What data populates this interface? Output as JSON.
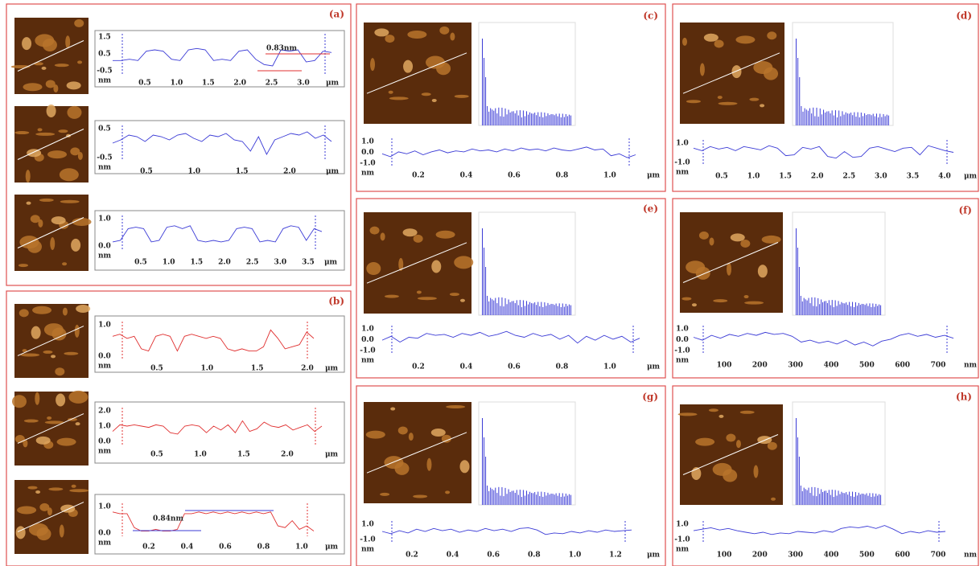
{
  "panels": [
    {
      "label": "(a)",
      "color": "#3b3bd6",
      "rows": [
        {
          "yticks": [
            "1.5",
            "0.5",
            "-0.5"
          ],
          "yunit": "nm",
          "xticks": [
            "0.5",
            "1.0",
            "1.5",
            "2.0",
            "2.5",
            "3.0"
          ],
          "xunit": "μm",
          "ylim": [
            -1,
            2
          ],
          "annotation": "0.83nm",
          "profile": [
            0,
            0,
            0.1,
            0,
            0.7,
            0.8,
            0.7,
            0.1,
            0,
            0.8,
            0.9,
            0.8,
            0,
            0.1,
            0,
            0.7,
            0.8,
            0.1,
            -0.3,
            -0.4,
            0.8,
            0.7,
            0.8,
            -0.1,
            0,
            0.7,
            0.6
          ]
        },
        {
          "yticks": [
            "0.5",
            "-0.5"
          ],
          "yunit": "nm",
          "xticks": [
            "0.5",
            "1.0",
            "1.5",
            "2.0"
          ],
          "xunit": "μm",
          "ylim": [
            -1,
            1.2
          ],
          "profile": [
            0.1,
            0.3,
            0.6,
            0.5,
            0.2,
            0.6,
            0.5,
            0.3,
            0.6,
            0.7,
            0.4,
            0.2,
            0.6,
            0.5,
            0.7,
            0.3,
            0.2,
            -0.4,
            0.5,
            -0.6,
            0.3,
            0.5,
            0.7,
            0.6,
            0.8,
            0.4,
            0.6,
            0.2
          ]
        },
        {
          "yticks": [
            "1.0",
            "0.0"
          ],
          "yunit": "nm",
          "xticks": [
            "0.5",
            "1.0",
            "1.5",
            "2.0",
            "2.5",
            "3.0",
            "3.5"
          ],
          "xunit": "μm",
          "ylim": [
            -0.5,
            1.8
          ],
          "profile": [
            0,
            0.1,
            0.9,
            1.0,
            0.9,
            0,
            0.1,
            1.0,
            1.1,
            0.9,
            1.1,
            0.1,
            0,
            0.1,
            0,
            0.1,
            0.9,
            1.0,
            0.9,
            0,
            0.1,
            0,
            0.9,
            1.1,
            1.0,
            0.1,
            0.9,
            0.7
          ]
        }
      ]
    },
    {
      "label": "(b)",
      "color": "#e03030",
      "rows": [
        {
          "yticks": [
            "1.0",
            "0.0"
          ],
          "yunit": "nm",
          "xticks": [
            "0.5",
            "1.0",
            "1.5",
            "2.0"
          ],
          "xunit": "μm",
          "ylim": [
            -0.3,
            1.5
          ],
          "profile": [
            0.8,
            0.9,
            0.7,
            0.8,
            0.2,
            0.1,
            0.8,
            0.9,
            0.8,
            0.1,
            0.8,
            0.9,
            0.8,
            0.7,
            0.8,
            0.7,
            0.2,
            0.1,
            0.2,
            0.1,
            0.1,
            0.3,
            1.1,
            0.7,
            0.2,
            0.3,
            0.4,
            1.0,
            0.7
          ]
        },
        {
          "yticks": [
            "2.0",
            "1.0",
            "0.0"
          ],
          "yunit": "nm",
          "xticks": [
            "0.5",
            "1.0",
            "1.5",
            "2.0"
          ],
          "xunit": "μm",
          "ylim": [
            -0.5,
            2.3
          ],
          "profile": [
            0.5,
            1.0,
            0.9,
            1.0,
            0.9,
            0.8,
            1.0,
            0.9,
            0.4,
            0.3,
            0.9,
            1.0,
            0.9,
            0.4,
            0.9,
            0.6,
            1.0,
            0.4,
            1.3,
            0.5,
            0.7,
            1.2,
            0.9,
            0.8,
            1.0,
            0.6,
            0.8,
            1.0,
            0.5,
            0.9
          ]
        },
        {
          "yticks": [
            "1.0",
            "0.0"
          ],
          "yunit": "nm",
          "xticks": [
            "0.2",
            "0.4",
            "0.6",
            "0.8",
            "1.0"
          ],
          "xunit": "μm",
          "ylim": [
            -0.3,
            1.6
          ],
          "annotation": "0.84nm",
          "profile": [
            1.1,
            1.0,
            1.0,
            0.2,
            0.0,
            0.0,
            0.1,
            0.0,
            0.0,
            0.1,
            1.0,
            1.0,
            1.1,
            1.0,
            1.1,
            1.0,
            1.1,
            1.0,
            1.1,
            1.0,
            1.1,
            1.0,
            1.1,
            0.3,
            0.2,
            0.6,
            0.1,
            0.3,
            0.0
          ]
        }
      ]
    },
    {
      "label": "(c)",
      "color": "#3b3bd6",
      "rows": [
        {
          "yticks": [
            "1.0",
            "0.0",
            "-1.0"
          ],
          "yunit": "nm",
          "xticks": [
            "0.2",
            "0.4",
            "0.6",
            "0.8",
            "1.0"
          ],
          "xunit": "μm",
          "ylim": [
            -1.3,
            1.6
          ],
          "profile": [
            0,
            -0.3,
            0.2,
            0,
            0.3,
            -0.1,
            0.2,
            0.4,
            0.1,
            0.3,
            0.2,
            0.5,
            0.3,
            0.4,
            0.2,
            0.5,
            0.3,
            0.6,
            0.4,
            0.5,
            0.3,
            0.6,
            0.4,
            0.3,
            0.5,
            0.7,
            0.4,
            0.5,
            -0.2,
            0,
            -0.4,
            -0.1
          ]
        }
      ]
    },
    {
      "label": "(d)",
      "color": "#3b3bd6",
      "rows": [
        {
          "yticks": [
            "1.0",
            "-1.0"
          ],
          "yunit": "nm",
          "xticks": [
            "0.5",
            "1.0",
            "1.5",
            "2.0",
            "2.5",
            "3.0",
            "3.5",
            "4.0"
          ],
          "xunit": "μm",
          "ylim": [
            -1.5,
            1.6
          ],
          "profile": [
            0.6,
            0.3,
            0.8,
            0.5,
            0.7,
            0.3,
            0.8,
            0.6,
            0.4,
            0.9,
            0.6,
            -0.3,
            -0.2,
            0.7,
            0.5,
            0.8,
            -0.4,
            -0.6,
            0.2,
            -0.5,
            -0.4,
            0.6,
            0.8,
            0.5,
            0.2,
            0.6,
            0.7,
            -0.2,
            0.9,
            0.6,
            0.3,
            0.1
          ]
        }
      ]
    },
    {
      "label": "(e)",
      "color": "#3b3bd6",
      "rows": [
        {
          "yticks": [
            "1.0",
            "0.0",
            "-1.0"
          ],
          "yunit": "nm",
          "xticks": [
            "0.2",
            "0.4",
            "0.6",
            "0.8",
            "1.0"
          ],
          "xunit": "μm",
          "ylim": [
            -1.3,
            1.6
          ],
          "profile": [
            0.1,
            0.5,
            -0.1,
            0.4,
            0.3,
            0.8,
            0.6,
            0.7,
            0.4,
            0.8,
            0.6,
            0.9,
            0.5,
            0.7,
            1.0,
            0.6,
            0.4,
            0.8,
            0.5,
            0.7,
            0.2,
            0.6,
            -0.2,
            0.5,
            0.1,
            0.6,
            0.2,
            0.5,
            -0.1,
            0.3
          ]
        }
      ]
    },
    {
      "label": "(f)",
      "color": "#3b3bd6",
      "rows": [
        {
          "yticks": [
            "1.0",
            "0.0",
            "-1.0"
          ],
          "yunit": "nm",
          "xticks": [
            "100",
            "200",
            "300",
            "400",
            "500",
            "600",
            "700"
          ],
          "xunit": "nm",
          "ylim": [
            -1.3,
            1.6
          ],
          "profile": [
            0.4,
            0.1,
            0.6,
            0.3,
            0.7,
            0.5,
            0.8,
            0.6,
            0.9,
            0.7,
            0.8,
            0.5,
            -0.1,
            0.1,
            -0.2,
            0,
            -0.3,
            0.1,
            -0.4,
            -0.1,
            -0.5,
            0,
            0.2,
            0.6,
            0.8,
            0.5,
            0.7,
            0.4,
            0.6,
            0.3
          ]
        }
      ]
    },
    {
      "label": "(g)",
      "color": "#3b3bd6",
      "rows": [
        {
          "yticks": [
            "1.0",
            "-1.0"
          ],
          "yunit": "nm",
          "xticks": [
            "0.2",
            "0.4",
            "0.6",
            "0.8",
            "1.0",
            "1.2"
          ],
          "xunit": "μm",
          "ylim": [
            -1.3,
            1.6
          ],
          "profile": [
            0.2,
            -0.1,
            0.3,
            0,
            0.5,
            0.2,
            0.6,
            0.3,
            0.5,
            0.1,
            0.4,
            0.2,
            0.6,
            0.3,
            0.5,
            0.2,
            0.6,
            0.7,
            0.4,
            -0.2,
            0,
            -0.1,
            0.2,
            0,
            0.3,
            0.1,
            0.4,
            0.2,
            0.3,
            0.4
          ]
        }
      ]
    },
    {
      "label": "(h)",
      "color": "#3b3bd6",
      "rows": [
        {
          "yticks": [
            "1.0",
            "-1.0"
          ],
          "yunit": "nm",
          "xticks": [
            "100",
            "200",
            "300",
            "400",
            "500",
            "600",
            "700"
          ],
          "xunit": "nm",
          "ylim": [
            -1.3,
            1.6
          ],
          "profile": [
            0.3,
            0.5,
            0.7,
            0.4,
            0.6,
            0.3,
            0.1,
            -0.1,
            0.1,
            -0.2,
            0,
            -0.1,
            0.2,
            0.1,
            0,
            0.3,
            0.1,
            0.6,
            0.8,
            0.7,
            0.9,
            0.6,
            1.0,
            0.5,
            -0.1,
            0.2,
            0,
            0.3,
            0.1,
            0.2
          ]
        }
      ]
    }
  ]
}
